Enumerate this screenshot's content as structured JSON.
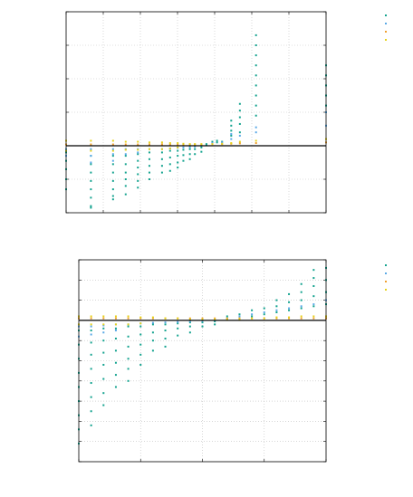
{
  "colors": {
    "teal": "#14a38f",
    "blue": "#5aa9e6",
    "orange": "#f0a030",
    "yellow": "#e6d21e",
    "axis": "#000000",
    "grid": "#bfbfbf"
  },
  "chart_data": [
    {
      "type": "scatter",
      "title": "",
      "xlabel": "",
      "ylabel": "",
      "xscale": "log",
      "xlim": [
        1,
        100000
      ],
      "ylim": [
        -2,
        4
      ],
      "grid": true,
      "legend_position": "top-right",
      "reference_line": 0,
      "series": [
        {
          "color_key": "teal",
          "x": [
            1,
            1,
            1,
            1,
            1,
            3,
            3,
            3,
            3,
            3,
            3,
            3,
            3,
            8,
            8,
            8,
            8,
            8,
            8,
            8,
            14,
            14,
            14,
            14,
            14,
            14,
            24,
            24,
            24,
            24,
            24,
            24,
            40,
            40,
            40,
            40,
            40,
            70,
            70,
            70,
            70,
            100,
            100,
            100,
            100,
            140,
            140,
            140,
            140,
            180,
            180,
            180,
            240,
            240,
            240,
            300,
            300,
            400,
            400,
            500,
            500,
            650,
            650,
            800,
            800,
            1000,
            1500,
            1500,
            1500,
            1500,
            2200,
            2200,
            2200,
            2200,
            2200,
            4500,
            4500,
            4500,
            4500,
            4500,
            4500,
            4500,
            4500,
            4500,
            100000,
            100000,
            100000,
            100000,
            100000
          ],
          "y": [
            -0.2,
            -0.45,
            -0.7,
            -1.0,
            -1.3,
            -0.3,
            -0.55,
            -0.8,
            -1.05,
            -1.3,
            -1.55,
            -1.8,
            -1.85,
            -0.3,
            -0.55,
            -0.8,
            -1.05,
            -1.3,
            -1.5,
            -1.6,
            -0.3,
            -0.55,
            -0.8,
            -1.0,
            -1.2,
            -1.45,
            -0.25,
            -0.45,
            -0.65,
            -0.85,
            -1.05,
            -1.25,
            -0.2,
            -0.4,
            -0.6,
            -0.8,
            -1.0,
            -0.2,
            -0.4,
            -0.6,
            -0.8,
            -0.15,
            -0.35,
            -0.55,
            -0.75,
            -0.15,
            -0.3,
            -0.5,
            -0.65,
            -0.12,
            -0.28,
            -0.45,
            -0.1,
            -0.25,
            -0.4,
            -0.1,
            -0.25,
            -0.05,
            -0.18,
            0.02,
            0.05,
            0.08,
            0.12,
            0.1,
            0.15,
            0.12,
            0.3,
            0.45,
            0.6,
            0.75,
            0.4,
            0.65,
            0.85,
            1.05,
            1.25,
            0.9,
            1.2,
            1.5,
            1.8,
            2.1,
            2.4,
            2.7,
            3.0,
            3.3,
            1.2,
            1.5,
            1.8,
            2.1,
            2.4
          ]
        },
        {
          "color_key": "blue",
          "x": [
            1,
            1,
            3,
            3,
            3,
            8,
            8,
            8,
            14,
            14,
            24,
            24,
            40,
            70,
            100,
            140,
            180,
            240,
            300,
            400,
            650,
            1000,
            1500,
            1500,
            2200,
            4500,
            4500,
            100000,
            100000
          ],
          "y": [
            -0.1,
            -0.3,
            -0.1,
            -0.3,
            -0.5,
            -0.1,
            -0.25,
            -0.45,
            -0.1,
            -0.25,
            -0.1,
            -0.2,
            -0.1,
            -0.1,
            -0.08,
            -0.06,
            -0.05,
            -0.04,
            -0.03,
            0,
            0.08,
            0.1,
            0.2,
            0.35,
            0.3,
            0.4,
            0.55,
            0.6,
            1.0
          ]
        },
        {
          "color_key": "orange",
          "x": [
            1,
            3,
            8,
            14,
            24,
            40,
            70,
            100,
            140,
            180,
            240,
            300,
            400,
            650,
            1000,
            1500,
            2200,
            4500,
            100000
          ],
          "y": [
            0.04,
            0.04,
            0.04,
            0.04,
            0.04,
            0.04,
            0.04,
            0.04,
            0.04,
            0.04,
            0.04,
            0.04,
            0.04,
            0.05,
            0.05,
            0.06,
            0.07,
            0.08,
            0.1
          ]
        },
        {
          "color_key": "yellow",
          "x": [
            1,
            1,
            3,
            3,
            8,
            8,
            14,
            14,
            24,
            24,
            40,
            40,
            70,
            70,
            100,
            100,
            140,
            140,
            180,
            240,
            300,
            400,
            650,
            1000,
            1500,
            2200,
            4500,
            100000
          ],
          "y": [
            0.15,
            -0.15,
            0.15,
            -0.15,
            0.15,
            -0.15,
            0.12,
            -0.12,
            0.12,
            -0.12,
            0.1,
            -0.1,
            0.1,
            -0.1,
            0.08,
            -0.08,
            0.08,
            -0.05,
            0.06,
            0.05,
            0.05,
            0.05,
            0.05,
            0.06,
            0.08,
            0.12,
            0.15,
            0.2
          ]
        }
      ]
    },
    {
      "type": "scatter",
      "title": "",
      "xlabel": "",
      "ylabel": "",
      "xlim": [
        0,
        20
      ],
      "ylim": [
        -7,
        3
      ],
      "grid": true,
      "legend_position": "top-right",
      "reference_line": 0,
      "series": [
        {
          "color_key": "teal",
          "x": [
            0,
            0,
            0,
            0,
            0,
            0,
            0,
            0,
            0,
            1,
            1,
            1,
            1,
            1,
            1,
            1,
            1,
            2,
            2,
            2,
            2,
            2,
            2,
            2,
            3,
            3,
            3,
            3,
            3,
            3,
            4,
            4,
            4,
            4,
            4,
            4,
            5,
            5,
            5,
            5,
            5,
            6,
            6,
            6,
            6,
            7,
            7,
            7,
            7,
            8,
            8,
            8,
            9,
            9,
            9,
            10,
            10,
            11,
            11,
            12,
            12,
            13,
            13,
            14,
            14,
            15,
            15,
            16,
            16,
            16,
            17,
            17,
            17,
            18,
            18,
            18,
            18,
            19,
            19,
            19,
            19,
            19,
            20,
            20,
            20,
            20
          ],
          "y": [
            -0.5,
            -1.2,
            -1.9,
            -2.6,
            -3.3,
            -4.0,
            -4.7,
            -5.4,
            -6.1,
            -0.5,
            -1.1,
            -1.7,
            -2.4,
            -3.1,
            -3.8,
            -4.5,
            -5.2,
            -0.4,
            -1.0,
            -1.6,
            -2.2,
            -2.9,
            -3.6,
            -4.2,
            -0.4,
            -0.9,
            -1.5,
            -2.1,
            -2.7,
            -3.3,
            -0.3,
            -0.8,
            -1.3,
            -1.9,
            -2.4,
            -3.0,
            -0.3,
            -0.7,
            -1.2,
            -1.7,
            -2.2,
            -0.2,
            -0.6,
            -1.0,
            -1.5,
            -0.2,
            -0.5,
            -0.9,
            -1.3,
            -0.15,
            -0.4,
            -0.75,
            -0.1,
            -0.3,
            -0.6,
            -0.1,
            -0.3,
            -0.05,
            -0.2,
            0.05,
            0.2,
            0.1,
            0.3,
            0.2,
            0.5,
            0.3,
            0.6,
            0.4,
            0.7,
            1.0,
            0.5,
            0.9,
            1.3,
            0.6,
            1.0,
            1.4,
            1.8,
            0.7,
            1.2,
            1.7,
            2.1,
            2.5,
            0.8,
            1.4,
            2.0,
            2.6
          ]
        },
        {
          "color_key": "blue",
          "x": [
            0,
            0,
            1,
            1,
            2,
            2,
            3,
            3,
            4,
            5,
            6,
            7,
            8,
            9,
            10,
            11,
            12,
            13,
            14,
            15,
            16,
            17,
            18,
            19,
            20
          ],
          "y": [
            -0.3,
            -0.8,
            -0.3,
            -0.7,
            -0.25,
            -0.6,
            -0.2,
            -0.5,
            -0.2,
            -0.15,
            -0.12,
            -0.1,
            -0.08,
            -0.05,
            -0.03,
            0,
            0.1,
            0.2,
            0.3,
            0.4,
            0.5,
            0.6,
            0.7,
            0.8,
            1.0
          ]
        },
        {
          "color_key": "orange",
          "x": [
            0,
            1,
            2,
            3,
            4,
            5,
            6,
            7,
            8,
            9,
            10,
            11,
            12,
            13,
            14,
            15,
            16,
            17,
            18,
            19,
            20
          ],
          "y": [
            0.1,
            0.1,
            0.1,
            0.1,
            0.1,
            0.1,
            0.1,
            0.1,
            0.1,
            0.1,
            0.1,
            0.1,
            0.1,
            0.1,
            0.1,
            0.1,
            0.1,
            0.1,
            0.1,
            0.1,
            0.1
          ]
        },
        {
          "color_key": "yellow",
          "x": [
            0,
            0,
            1,
            1,
            2,
            2,
            3,
            3,
            4,
            4,
            5,
            5,
            6,
            7,
            8,
            9,
            10,
            11,
            12,
            13,
            14,
            15,
            16,
            17,
            18,
            19,
            20
          ],
          "y": [
            0.2,
            -0.2,
            0.2,
            -0.2,
            0.2,
            -0.2,
            0.2,
            -0.2,
            0.2,
            -0.2,
            0.15,
            -0.15,
            0.15,
            0.1,
            0.1,
            0.05,
            0.05,
            0.05,
            0.05,
            0.05,
            0.1,
            0.1,
            0.15,
            0.15,
            0.2,
            0.2,
            0.2
          ]
        }
      ]
    }
  ]
}
